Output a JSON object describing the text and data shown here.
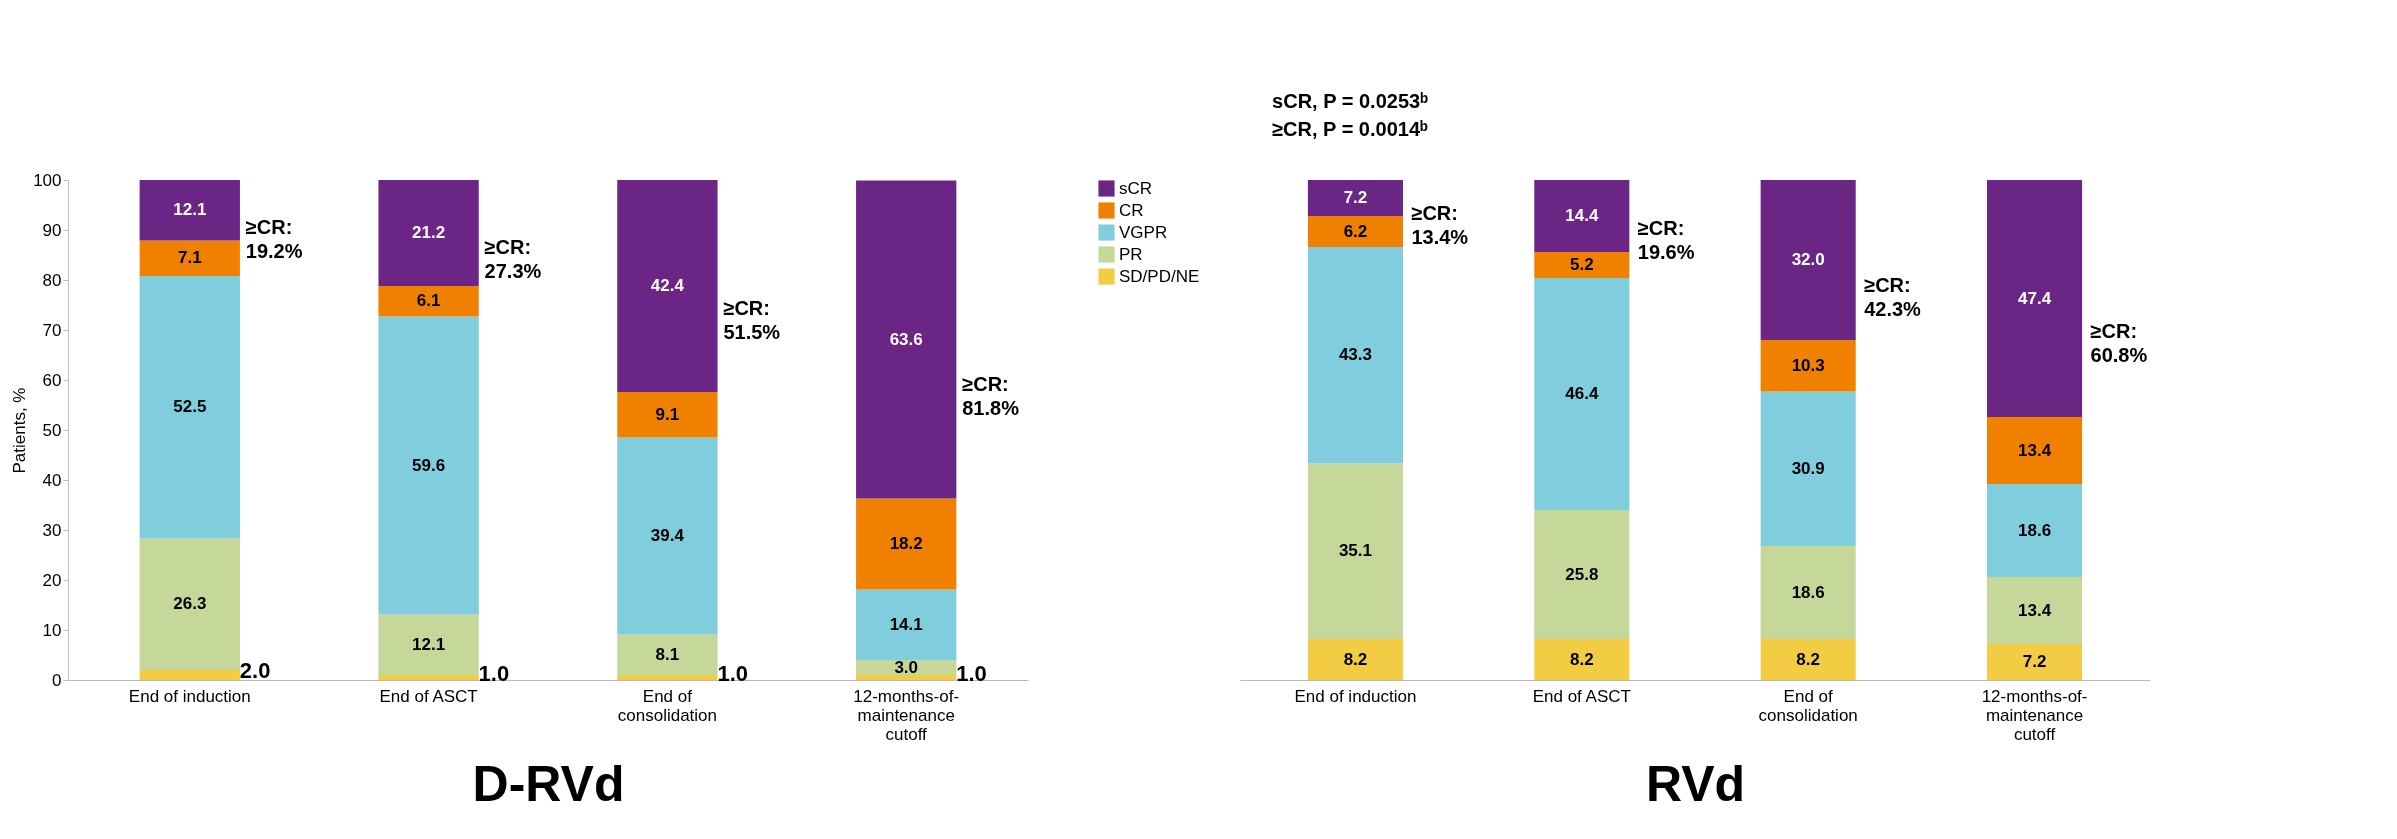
{
  "chart_data": [
    {
      "type": "bar",
      "stacked": true,
      "xlabel": "D-RVd",
      "ylabel": "Patients, %",
      "categories": [
        "End of induction",
        "End of ASCT",
        "End of consolidation",
        "12-months-of-maintenance cutoff"
      ],
      "ylim": [
        0,
        100
      ],
      "yticks": [
        0,
        10,
        20,
        30,
        40,
        50,
        60,
        70,
        80,
        90,
        100
      ],
      "grid": false,
      "legend": "right",
      "series": [
        {
          "name": "SD/PD/NE",
          "color": "#f2cd44",
          "values": [
            2.0,
            1.0,
            1.0,
            1.0
          ],
          "value_labels": [
            "2.0",
            "1.0",
            "1.0",
            "1.0"
          ]
        },
        {
          "name": "PR",
          "color": "#c5d89a",
          "values": [
            26.3,
            12.1,
            8.1,
            3.0
          ],
          "value_labels": [
            "26.3",
            "12.1",
            "8.1",
            "3.0"
          ]
        },
        {
          "name": "VGPR",
          "color": "#7fcddd",
          "values": [
            52.5,
            59.6,
            39.4,
            14.1
          ],
          "value_labels": [
            "52.5",
            "59.6",
            "39.4",
            "14.1"
          ]
        },
        {
          "name": "CR",
          "color": "#f08000",
          "values": [
            7.1,
            6.1,
            9.1,
            18.2
          ],
          "value_labels": [
            "7.1",
            "6.1",
            "9.1",
            "18.2"
          ]
        },
        {
          "name": "sCR",
          "color": "#6b2585",
          "values": [
            12.1,
            21.2,
            42.4,
            63.6
          ],
          "value_labels": [
            "12.1",
            "21.2",
            "42.4",
            "63.6"
          ]
        }
      ],
      "annotations": [
        "≥CR: 19.2%",
        "≥CR: 27.3%",
        "≥CR: 51.5%",
        "≥CR: 81.8%"
      ]
    },
    {
      "type": "bar",
      "stacked": true,
      "xlabel": "RVd",
      "categories": [
        "End of induction",
        "End of ASCT",
        "End of consolidation",
        "12-months-of-maintenance cutoff"
      ],
      "ylim": [
        0,
        100
      ],
      "tick_labels": "x",
      "grid": false,
      "series": [
        {
          "color": "#f2cd44",
          "values": [
            8.2,
            8.2,
            8.2,
            7.2
          ],
          "value_labels": [
            "8.2",
            "8.2",
            "8.2",
            "7.2"
          ]
        },
        {
          "color": "#c5d89a",
          "values": [
            35.1,
            25.8,
            18.6,
            13.4
          ],
          "value_labels": [
            "35.1",
            "25.8",
            "18.6",
            "13.4"
          ]
        },
        {
          "color": "#7fcddd",
          "values": [
            43.3,
            46.4,
            30.9,
            18.6
          ],
          "value_labels": [
            "43.3",
            "46.4",
            "30.9",
            "18.6"
          ]
        },
        {
          "color": "#f08000",
          "values": [
            6.2,
            5.2,
            10.3,
            13.4
          ],
          "value_labels": [
            "6.2",
            "5.2",
            "10.3",
            "13.4"
          ]
        },
        {
          "color": "#6b2585",
          "values": [
            7.2,
            14.4,
            32.0,
            47.4
          ],
          "value_labels": [
            "7.2",
            "14.4",
            "32.0",
            "47.4"
          ]
        }
      ],
      "annotations": [
        "≥CR: 13.4%",
        "≥CR: 19.6%",
        "≥CR: 42.3%",
        "≥CR: 60.8%",
        "sCR, P = 0.0253ᵇ",
        "≥CR, P = 0.0014ᵇ"
      ]
    }
  ]
}
